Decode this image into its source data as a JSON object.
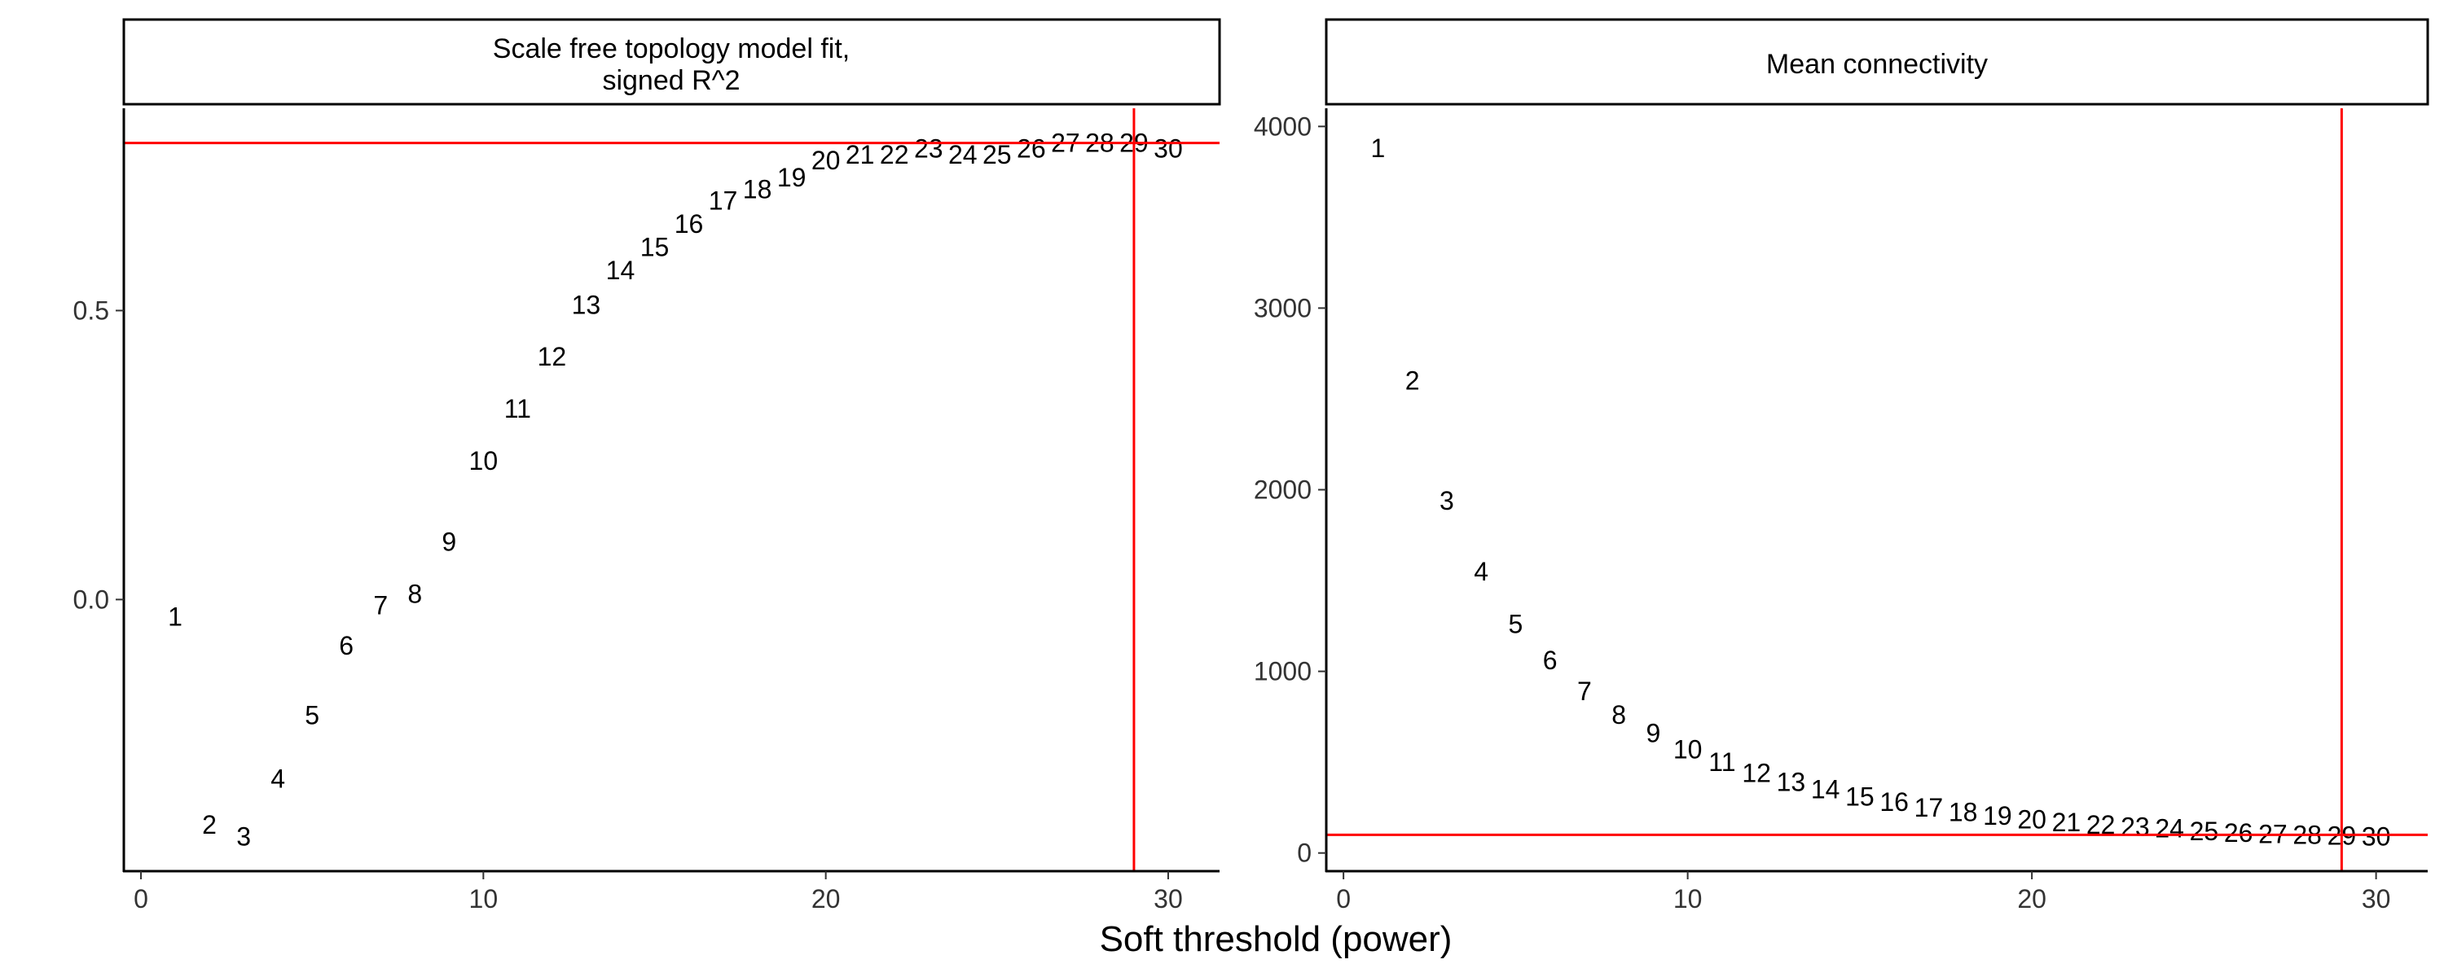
{
  "xlabel": "Soft threshold (power)",
  "chart_data": [
    {
      "type": "scatter",
      "marker": "text-labels",
      "strip_title": [
        "Scale free topology model fit,",
        "signed R^2"
      ],
      "xlim": [
        -0.5,
        31.5
      ],
      "ylim": [
        -0.47,
        0.85
      ],
      "x_ticks": [
        0,
        10,
        20,
        30
      ],
      "y_ticks": [
        0.0,
        0.5
      ],
      "y_tick_labels": [
        "0.0",
        "0.5"
      ],
      "x": [
        1,
        2,
        3,
        4,
        5,
        6,
        7,
        8,
        9,
        10,
        11,
        12,
        13,
        14,
        15,
        16,
        17,
        18,
        19,
        20,
        21,
        22,
        23,
        24,
        25,
        26,
        27,
        28,
        29,
        30
      ],
      "y": [
        -0.03,
        -0.39,
        -0.41,
        -0.31,
        -0.2,
        -0.08,
        -0.01,
        0.01,
        0.1,
        0.24,
        0.33,
        0.42,
        0.51,
        0.57,
        0.61,
        0.65,
        0.69,
        0.71,
        0.73,
        0.76,
        0.77,
        0.77,
        0.78,
        0.77,
        0.77,
        0.78,
        0.79,
        0.79,
        0.79,
        0.78
      ],
      "labels": [
        "1",
        "2",
        "3",
        "4",
        "5",
        "6",
        "7",
        "8",
        "9",
        "10",
        "11",
        "12",
        "13",
        "14",
        "15",
        "16",
        "17",
        "18",
        "19",
        "20",
        "21",
        "22",
        "23",
        "24",
        "25",
        "26",
        "27",
        "28",
        "29",
        "30"
      ],
      "grid": false,
      "hline": 0.79,
      "vline": 29,
      "line_color": "#ff0000"
    },
    {
      "type": "scatter",
      "marker": "text-labels",
      "strip_title": [
        "Mean connectivity"
      ],
      "xlim": [
        -0.5,
        31.5
      ],
      "ylim": [
        -100,
        4100
      ],
      "x_ticks": [
        0,
        10,
        20,
        30
      ],
      "y_ticks": [
        0,
        1000,
        2000,
        3000,
        4000
      ],
      "y_tick_labels": [
        "0",
        "1000",
        "2000",
        "3000",
        "4000"
      ],
      "x": [
        1,
        2,
        3,
        4,
        5,
        6,
        7,
        8,
        9,
        10,
        11,
        12,
        13,
        14,
        15,
        16,
        17,
        18,
        19,
        20,
        21,
        22,
        23,
        24,
        25,
        26,
        27,
        28,
        29,
        30
      ],
      "y": [
        3880,
        2600,
        1940,
        1550,
        1260,
        1060,
        890,
        760,
        660,
        570,
        500,
        440,
        390,
        350,
        310,
        280,
        250,
        225,
        205,
        185,
        170,
        155,
        145,
        135,
        120,
        110,
        105,
        100,
        95,
        90
      ],
      "labels": [
        "1",
        "2",
        "3",
        "4",
        "5",
        "6",
        "7",
        "8",
        "9",
        "10",
        "11",
        "12",
        "13",
        "14",
        "15",
        "16",
        "17",
        "18",
        "19",
        "20",
        "21",
        "22",
        "23",
        "24",
        "25",
        "26",
        "27",
        "28",
        "29",
        "30"
      ],
      "grid": false,
      "hline": 100,
      "vline": 29,
      "line_color": "#ff0000"
    }
  ]
}
